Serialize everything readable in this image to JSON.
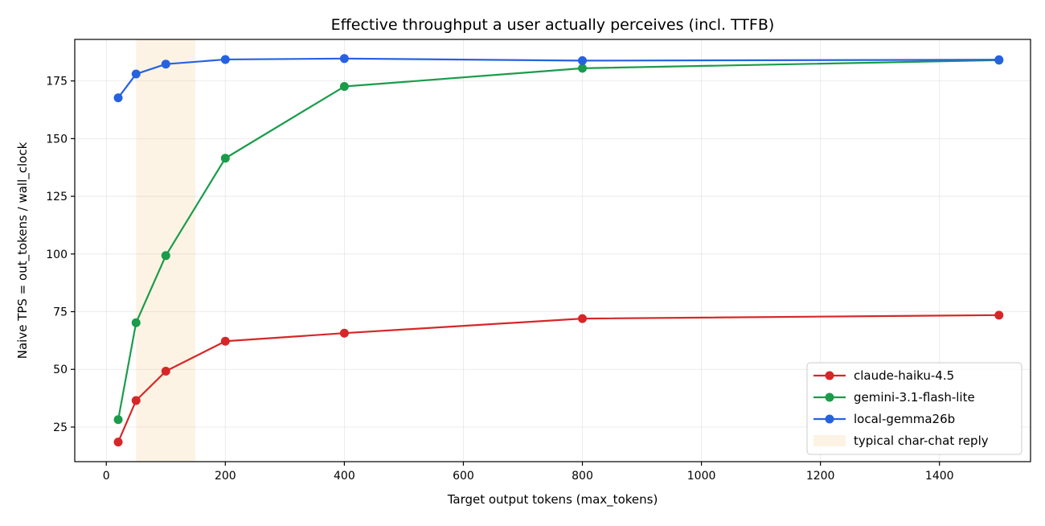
{
  "chart_data": {
    "type": "line",
    "title": "Effective throughput a user actually perceives (incl. TTFB)",
    "xlabel": "Target output tokens (max_tokens)",
    "ylabel": "Naive TPS = out_tokens / wall_clock",
    "xlim": [
      -53,
      1553
    ],
    "ylim": [
      10,
      193
    ],
    "xticks": [
      0,
      200,
      400,
      600,
      800,
      1000,
      1200,
      1400
    ],
    "yticks": [
      25,
      50,
      75,
      100,
      125,
      150,
      175
    ],
    "grid": true,
    "legend_position": "lower-right",
    "shaded_region": {
      "label": "typical char-chat reply",
      "x_start": 50,
      "x_end": 150,
      "color": "#fdf3e4"
    },
    "series": [
      {
        "name": "claude-haiku-4.5",
        "color": "#d62728",
        "x": [
          20,
          50,
          100,
          200,
          400,
          800,
          1500
        ],
        "y": [
          18.5,
          36.5,
          49.2,
          62.2,
          65.7,
          72.0,
          73.5
        ]
      },
      {
        "name": "gemini-3.1-flash-lite",
        "color": "#1a9c4b",
        "x": [
          20,
          50,
          100,
          200,
          400,
          800,
          1500
        ],
        "y": [
          28.2,
          70.2,
          99.3,
          141.5,
          172.6,
          180.5,
          184.0
        ]
      },
      {
        "name": "local-gemma26b",
        "color": "#2662e0",
        "x": [
          20,
          50,
          100,
          200,
          400,
          800,
          1500
        ],
        "y": [
          167.7,
          178.0,
          182.3,
          184.3,
          184.7,
          183.8,
          184.2
        ]
      }
    ]
  }
}
